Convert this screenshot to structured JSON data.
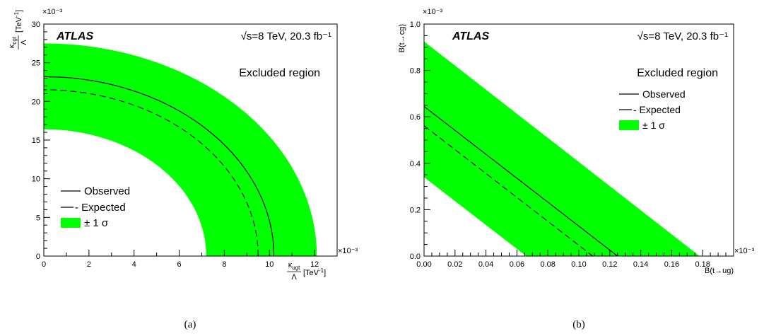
{
  "chart_data": [
    {
      "type": "area",
      "panel_label": "(a)",
      "xlabel": {
        "num": "κ",
        "num_sub": "ugt",
        "den": "Λ",
        "unit": "[TeV",
        "unit_sup": "-1",
        "close": "]"
      },
      "ylabel": {
        "num": "κ",
        "num_sub": "cgt",
        "den": "Λ",
        "unit": "[TeV",
        "unit_sup": "-1",
        "close": "]"
      },
      "x_multiplier": "×10⁻³",
      "y_multiplier": "×10⁻³",
      "xlim": [
        0,
        13
      ],
      "ylim": [
        0,
        30
      ],
      "x_ticks": [
        "0",
        "2",
        "4",
        "6",
        "8",
        "10",
        "12"
      ],
      "y_ticks": [
        "0",
        "5",
        "10",
        "15",
        "20",
        "25",
        "30"
      ],
      "atlas_label": "ATLAS",
      "energy_label": "√s=8 TeV, 20.3 fb⁻¹",
      "region_label": "Excluded region",
      "legend": [
        "Observed",
        "- Expected",
        "± 1 σ"
      ],
      "legend_position": "bottom-left",
      "series": [
        {
          "name": "Observed",
          "shape": "quarter-circle",
          "radius": 0.0102,
          "y_intercept": 0.0232,
          "style": "solid"
        },
        {
          "name": "Expected",
          "shape": "quarter-circle",
          "radius": 0.0095,
          "y_intercept": 0.0215,
          "style": "dashed"
        },
        {
          "name": "± 1 σ",
          "shape": "band",
          "inner_radius": 0.0072,
          "inner_y": 0.0164,
          "outer_radius": 0.0121,
          "outer_y": 0.0275
        }
      ]
    },
    {
      "type": "area",
      "panel_label": "(b)",
      "xlabel": "B(t→ug)",
      "ylabel": "B(t→cg)",
      "x_multiplier": "×10⁻³",
      "y_multiplier": "×10⁻³",
      "xlim": [
        0,
        0.2
      ],
      "ylim": [
        0,
        1.0
      ],
      "x_ticks": [
        "0.00",
        "0.02",
        "0.04",
        "0.06",
        "0.08",
        "0.10",
        "0.12",
        "0.14",
        "0.16",
        "0.18"
      ],
      "y_ticks": [
        "0.0",
        "0.2",
        "0.4",
        "0.6",
        "0.8",
        "1.0"
      ],
      "atlas_label": "ATLAS",
      "energy_label": "√s=8 TeV, 20.3 fb⁻¹",
      "region_label": "Excluded region",
      "legend": [
        "Observed",
        "- Expected",
        "± 1 σ"
      ],
      "legend_position": "top-right",
      "series": [
        {
          "name": "Observed",
          "x": [
            0,
            0.125
          ],
          "y": [
            0.645,
            0
          ],
          "style": "solid"
        },
        {
          "name": "Expected",
          "x": [
            0,
            0.109
          ],
          "y": [
            0.562,
            0
          ],
          "style": "dashed"
        },
        {
          "name": "± 1 σ",
          "band_lower": {
            "x": [
              0,
              0.066
            ],
            "y": [
              0.34,
              0
            ]
          },
          "band_upper": {
            "x": [
              0,
              0.178
            ],
            "y": [
              0.925,
              0
            ]
          }
        }
      ]
    }
  ]
}
